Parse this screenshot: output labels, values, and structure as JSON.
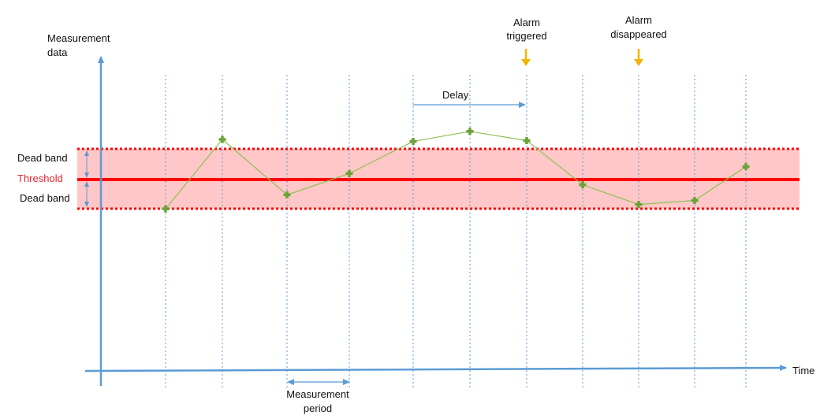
{
  "axes": {
    "y_label_line1": "Measurement",
    "y_label_line2": "data",
    "x_label": "Time",
    "axis_color": "#5b9bd5"
  },
  "band": {
    "dead_band_upper_label": "Dead band",
    "threshold_label": "Threshold",
    "dead_band_lower_label": "Dead band",
    "band_fill": "#ffc7c7",
    "threshold_color": "#ff0000"
  },
  "annotations": {
    "delay_label": "Delay",
    "alarm_triggered_line1": "Alarm",
    "alarm_triggered_line2": "triggered",
    "alarm_disappeared_line1": "Alarm",
    "alarm_disappeared_line2": "disappeared",
    "measurement_period_line1": "Measurement",
    "measurement_period_line2": "period",
    "alarm_arrow_color": "#f5b400"
  },
  "series": {
    "line_color": "#8cc152",
    "marker_color": "#6aa33a",
    "relative_levels": [
      -0.73,
      1.0,
      -0.38,
      0.15,
      0.95,
      1.2,
      0.97,
      -0.13,
      -0.62,
      -0.52,
      0.32
    ]
  }
}
